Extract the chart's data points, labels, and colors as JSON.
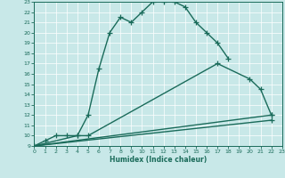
{
  "title": "",
  "xlabel": "Humidex (Indice chaleur)",
  "xlim": [
    0,
    23
  ],
  "ylim": [
    9,
    23
  ],
  "xticks": [
    0,
    1,
    2,
    3,
    4,
    5,
    6,
    7,
    8,
    9,
    10,
    11,
    12,
    13,
    14,
    15,
    16,
    17,
    18,
    19,
    20,
    21,
    22,
    23
  ],
  "yticks": [
    9,
    10,
    11,
    12,
    13,
    14,
    15,
    16,
    17,
    18,
    19,
    20,
    21,
    22,
    23
  ],
  "bg_color": "#c8e8e8",
  "grid_color": "#b0d8d8",
  "line_color": "#1a6b5a",
  "line_width": 1.0,
  "marker_size": 4,
  "line1_x": [
    0,
    1,
    2,
    3,
    4,
    5,
    6,
    7,
    8,
    9,
    10,
    11,
    12,
    13,
    14,
    15,
    16,
    17,
    18
  ],
  "line1_y": [
    9,
    9.5,
    10,
    10,
    10,
    12,
    16.5,
    20,
    21.5,
    21,
    22,
    23,
    23,
    23,
    22.5,
    21,
    20,
    19,
    17.5
  ],
  "line2_x": [
    0,
    4,
    5,
    17,
    20,
    21,
    22
  ],
  "line2_y": [
    9,
    10,
    10,
    17,
    15.5,
    14.5,
    12
  ],
  "line3_x": [
    0,
    22
  ],
  "line3_y": [
    9,
    12
  ],
  "line4_x": [
    0,
    22
  ],
  "line4_y": [
    9,
    11.5
  ]
}
